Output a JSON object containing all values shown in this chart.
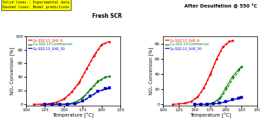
{
  "left_title": "Fresh SCR",
  "right_title": "After Desulfation @ 550 °C",
  "annotation_text": "Solid lines : Experimental data\nDashed lines: Model predictions",
  "xlabel": "Temperature [°C]",
  "ylabel": "NOₓ Conversion [%]",
  "colors": {
    "SAR6": "#ff0000",
    "Commercial": "#008000",
    "SAR30": "#0000cd"
  },
  "legend_labels": [
    "Cu-SSZ-13_SAR_6",
    "Cu-SSZ-13 Commercial",
    "Cu-SSZ-13_SAR_30"
  ],
  "left": {
    "xlim": [
      100,
      225
    ],
    "ylim": [
      -2,
      100
    ],
    "xticks": [
      100,
      125,
      150,
      175,
      200,
      225
    ],
    "yticks": [
      0,
      20,
      40,
      60,
      80,
      100
    ],
    "SAR6_exp_x": [
      110,
      120,
      130,
      140,
      150,
      160,
      170,
      180,
      190,
      200,
      210
    ],
    "SAR6_exp_y": [
      0,
      0.5,
      1,
      3,
      8,
      18,
      32,
      52,
      72,
      88,
      92
    ],
    "SAR6_model_x": [
      110,
      120,
      130,
      140,
      150,
      160,
      170,
      180,
      190,
      200,
      210
    ],
    "SAR6_model_y": [
      0,
      0.3,
      0.8,
      2.5,
      7,
      16,
      30,
      50,
      70,
      86,
      92
    ],
    "Comm_exp_x": [
      125,
      135,
      145,
      155,
      165,
      175,
      185,
      195,
      205,
      210
    ],
    "Comm_exp_y": [
      0,
      0,
      0.5,
      1,
      3,
      10,
      22,
      34,
      40,
      41
    ],
    "Comm_model_x": [
      125,
      135,
      145,
      155,
      165,
      175,
      185,
      195,
      205,
      210
    ],
    "Comm_model_y": [
      0,
      0,
      0.3,
      0.8,
      2.5,
      9,
      20,
      32,
      39,
      41
    ],
    "SAR30_exp_x": [
      125,
      135,
      145,
      155,
      165,
      175,
      185,
      195,
      205,
      210
    ],
    "SAR30_exp_y": [
      0,
      0,
      0,
      0.2,
      1,
      5,
      12,
      19,
      23,
      24
    ],
    "SAR30_model_x": [
      125,
      135,
      145,
      155,
      165,
      175,
      185,
      195,
      205,
      210
    ],
    "SAR30_model_y": [
      0,
      0,
      0,
      0.1,
      0.8,
      4,
      11,
      18,
      22,
      23
    ]
  },
  "right": {
    "xlim": [
      100,
      250
    ],
    "ylim": [
      -2,
      90
    ],
    "xticks": [
      100,
      125,
      150,
      175,
      200,
      225,
      250
    ],
    "yticks": [
      0,
      20,
      40,
      60,
      80
    ],
    "SAR6_exp_x": [
      115,
      125,
      135,
      145,
      155,
      165,
      175,
      185,
      195,
      205,
      210
    ],
    "SAR6_exp_y": [
      0,
      0.5,
      1.5,
      4,
      10,
      22,
      40,
      60,
      76,
      83,
      84
    ],
    "SAR6_model_x": [
      115,
      125,
      135,
      145,
      155,
      165,
      175,
      185,
      195,
      205,
      210
    ],
    "SAR6_model_y": [
      0,
      0.3,
      1,
      3,
      9,
      20,
      38,
      58,
      74,
      82,
      84
    ],
    "Comm_exp_x": [
      150,
      160,
      170,
      180,
      190,
      200,
      210,
      220,
      225
    ],
    "Comm_exp_y": [
      0,
      0,
      0.5,
      2,
      8,
      22,
      36,
      46,
      50
    ],
    "Comm_model_x": [
      150,
      160,
      170,
      180,
      190,
      200,
      210,
      220,
      225
    ],
    "Comm_model_y": [
      0,
      0,
      0.3,
      1.5,
      6,
      18,
      32,
      43,
      49
    ],
    "SAR30_exp_x": [
      150,
      160,
      170,
      180,
      190,
      200,
      210,
      220,
      225
    ],
    "SAR30_exp_y": [
      0,
      0,
      0,
      0.5,
      1.5,
      3.5,
      6,
      8,
      9
    ],
    "SAR30_model_x": [
      150,
      160,
      170,
      180,
      190,
      200,
      210,
      220,
      225
    ],
    "SAR30_model_y": [
      0,
      0,
      0,
      0.3,
      1.2,
      3,
      5.5,
      7.5,
      8.5
    ]
  }
}
